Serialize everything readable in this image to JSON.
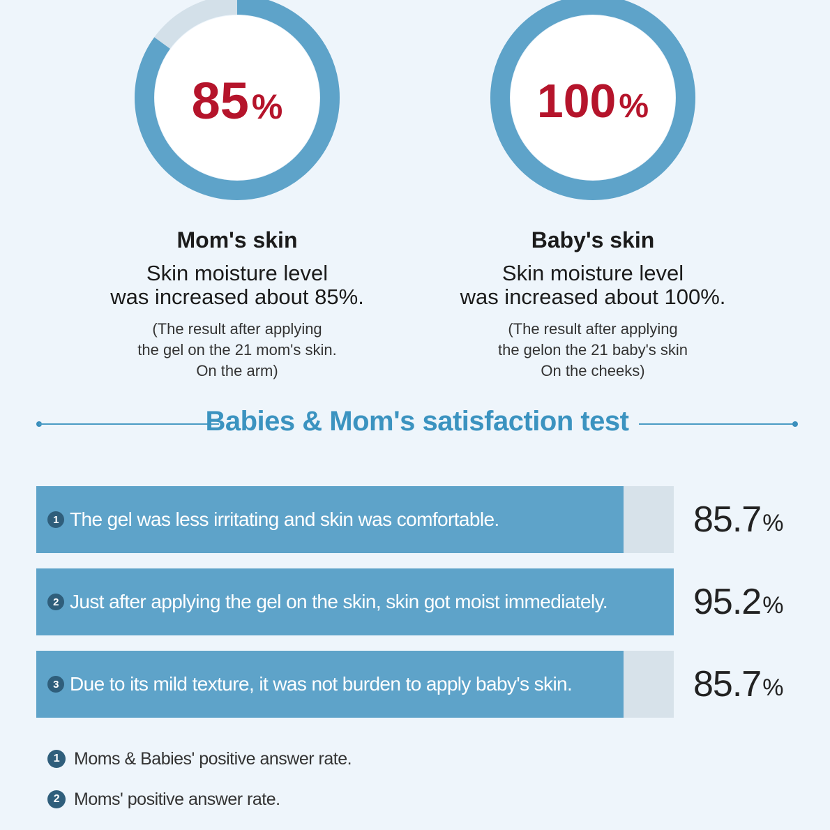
{
  "chart_data": [
    {
      "type": "pie",
      "title": "Mom's skin",
      "value": 85,
      "display": "85",
      "unit": "%",
      "colors": {
        "fill": "#5ea3c9",
        "remainder": "#d3e0e9",
        "value_text": "#b5142b"
      }
    },
    {
      "type": "pie",
      "title": "Baby's skin",
      "value": 100,
      "display": "100",
      "unit": "%",
      "colors": {
        "fill": "#5ea3c9",
        "remainder": "#d3e0e9",
        "value_text": "#b5142b"
      }
    },
    {
      "type": "bar",
      "title": "Babies & Mom's satisfaction test",
      "orientation": "horizontal",
      "ylim": [
        0,
        100
      ],
      "colors": {
        "fill": "#5ea3c9",
        "track": "#d7e2ea",
        "badge": "#2f5e7b"
      },
      "bars": [
        {
          "num": "1",
          "label": "The gel was less irritating and skin  was comfortable.",
          "value": 85.7,
          "display": "85.7",
          "unit": "%"
        },
        {
          "num": "2",
          "label": "Just after applying the gel on the skin, skin got moist immediately.",
          "value": 95.2,
          "display": "95.2",
          "unit": "%"
        },
        {
          "num": "3",
          "label": "Due to its mild texture, it was not burden to apply baby's skin.",
          "value": 85.7,
          "display": "85.7",
          "unit": "%"
        }
      ]
    }
  ],
  "mom": {
    "title": "Mom's skin",
    "desc": [
      "Skin moisture level",
      "was increased about 85%."
    ],
    "note": [
      "(The result after applying",
      "the gel on the 21 mom's skin.",
      "On the arm)"
    ]
  },
  "baby": {
    "title": "Baby's skin",
    "desc": [
      "Skin moisture level",
      "was increased about 100%."
    ],
    "note": [
      "(The result after applying",
      "the gelon the 21 baby's skin",
      "On the cheeks)"
    ]
  },
  "section": {
    "title": "Babies & Mom's satisfaction test"
  },
  "footnotes": [
    {
      "num": "1",
      "text": "Moms & Babies' positive answer rate."
    },
    {
      "num": "2",
      "text": "Moms' positive answer rate."
    }
  ]
}
